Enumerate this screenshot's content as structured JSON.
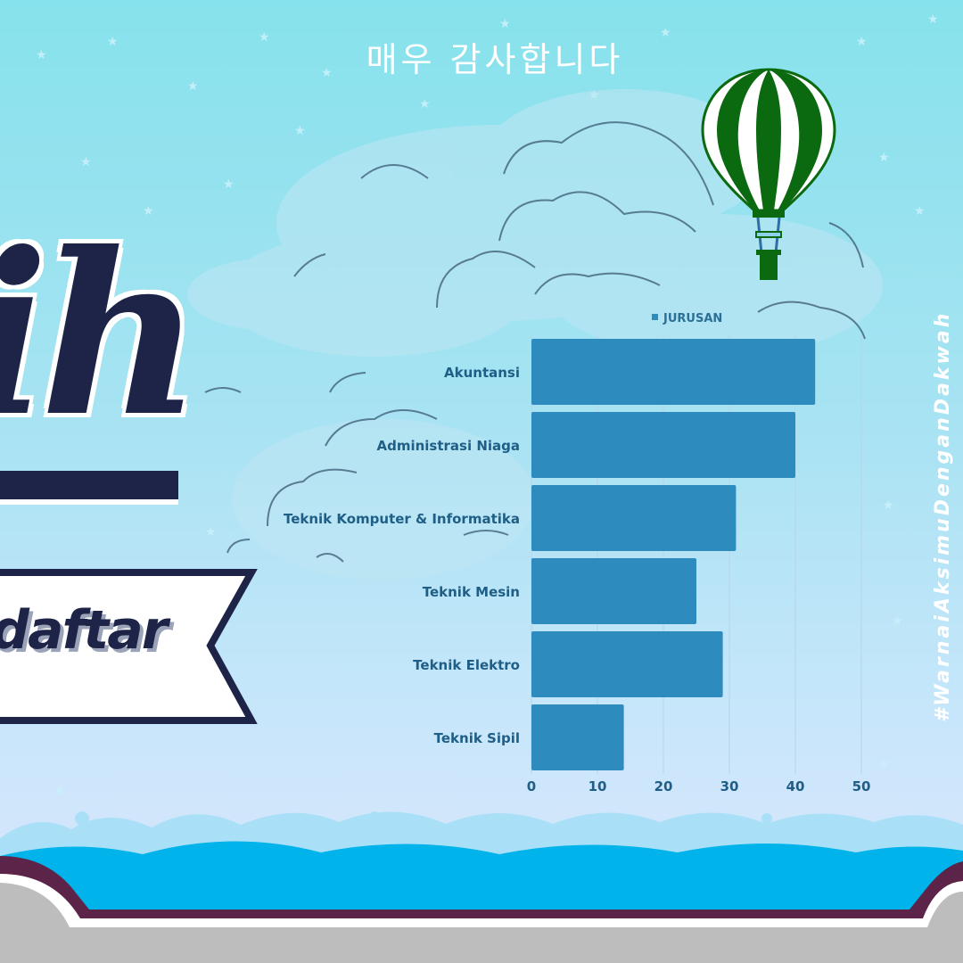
{
  "header": {
    "title": "매우 감사합니다"
  },
  "side_text": {
    "hashtag": "#WarnaiAksimuDenganDakwah"
  },
  "hero": {
    "partial_word": "ih",
    "banner_text": "daftar"
  },
  "colors": {
    "bar": "#2e8bbd",
    "text": "#1f5e86",
    "navy": "#1d2448",
    "balloon_green": "#0b6a0f"
  },
  "chart_data": {
    "type": "bar",
    "orientation": "horizontal",
    "categories": [
      "Akuntansi",
      "Administrasi Niaga",
      "Teknik Komputer & Informatika",
      "Teknik Mesin",
      "Teknik Elektro",
      "Teknik Sipil"
    ],
    "series": [
      {
        "name": "JURUSAN",
        "values": [
          43,
          40,
          31,
          25,
          29,
          14
        ]
      }
    ],
    "xlim": [
      0,
      50
    ],
    "xticks": [
      0,
      10,
      20,
      30,
      40,
      50
    ],
    "title": "",
    "xlabel": "",
    "ylabel": "",
    "grid": true,
    "legend": "top"
  }
}
